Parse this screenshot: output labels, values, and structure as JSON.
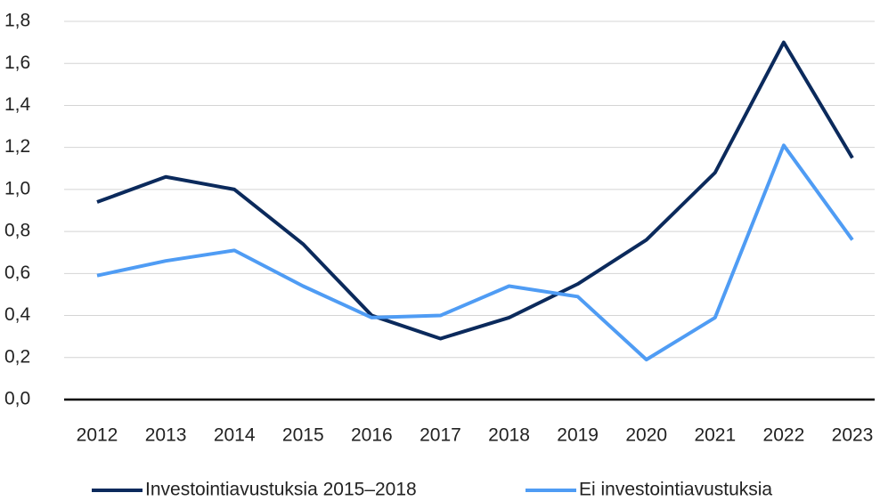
{
  "chart_data": {
    "type": "line",
    "categories": [
      "2012",
      "2013",
      "2014",
      "2015",
      "2016",
      "2017",
      "2018",
      "2019",
      "2020",
      "2021",
      "2022",
      "2023"
    ],
    "series": [
      {
        "name": "Investointiavustuksia 2015–2018",
        "color": "#0b2a5c",
        "values": [
          0.94,
          1.06,
          1.0,
          0.74,
          0.4,
          0.29,
          0.39,
          0.55,
          0.76,
          1.08,
          1.7,
          1.15
        ]
      },
      {
        "name": "Ei investointiavustuksia",
        "color": "#4f9cf4",
        "values": [
          0.59,
          0.66,
          0.71,
          0.54,
          0.39,
          0.4,
          0.54,
          0.49,
          0.19,
          0.39,
          1.21,
          0.76
        ]
      }
    ],
    "ylim": [
      0,
      1.8
    ],
    "yticks": [
      {
        "value": 0,
        "label": "0,0"
      },
      {
        "value": 0.2,
        "label": "0,2"
      },
      {
        "value": 0.4,
        "label": "0,4"
      },
      {
        "value": 0.6,
        "label": "0,6"
      },
      {
        "value": 0.8,
        "label": "0,8"
      },
      {
        "value": 1.0,
        "label": "1,0"
      },
      {
        "value": 1.2,
        "label": "1,2"
      },
      {
        "value": 1.4,
        "label": "1,4"
      },
      {
        "value": 1.6,
        "label": "1,6"
      },
      {
        "value": 1.8,
        "label": "1,8"
      }
    ],
    "grid": true,
    "legend": "bottom"
  }
}
